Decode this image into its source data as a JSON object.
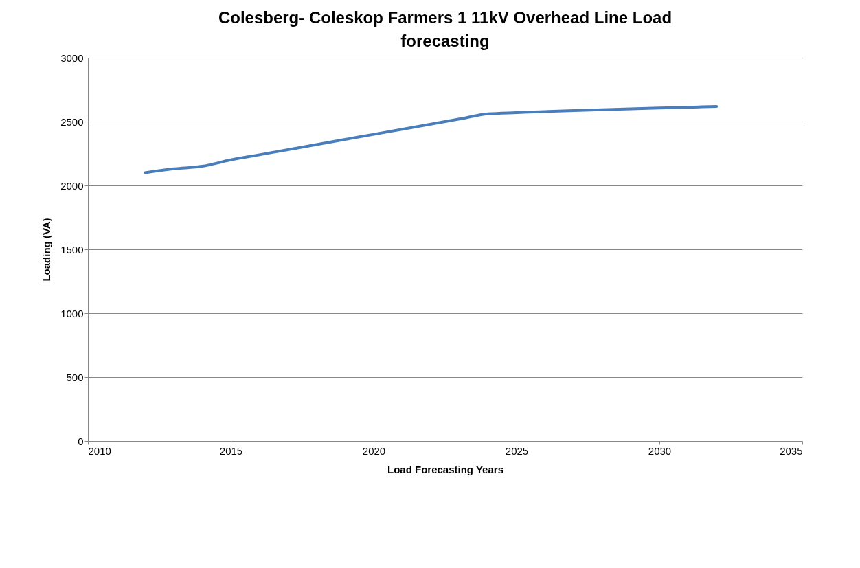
{
  "chart_data": {
    "type": "line",
    "title": "Colesberg- Coleskop Farmers 1 11kV Overhead Line Load forecasting",
    "xlabel": "Load Forecasting Years",
    "ylabel": "Loading (VA)",
    "x": [
      2012,
      2013,
      2014,
      2015,
      2016,
      2017,
      2018,
      2019,
      2020,
      2021,
      2022,
      2023,
      2024,
      2025,
      2026,
      2027,
      2028,
      2029,
      2030,
      2031,
      2032
    ],
    "series": [
      {
        "color": "#4a7ebb",
        "values": [
          2100,
          2130,
          2150,
          2200,
          2240,
          2280,
          2320,
          2360,
          2400,
          2440,
          2480,
          2520,
          2560,
          2570,
          2578,
          2586,
          2593,
          2600,
          2606,
          2612,
          2618
        ]
      }
    ],
    "xlim": [
      2010,
      2035
    ],
    "xticks": [
      2010,
      2015,
      2020,
      2025,
      2030,
      2035
    ],
    "ylim": [
      0,
      3000
    ],
    "yticks": [
      0,
      500,
      1000,
      1500,
      2000,
      2500,
      3000
    ],
    "grid": "y",
    "marker": "none",
    "line_style": "solid"
  }
}
